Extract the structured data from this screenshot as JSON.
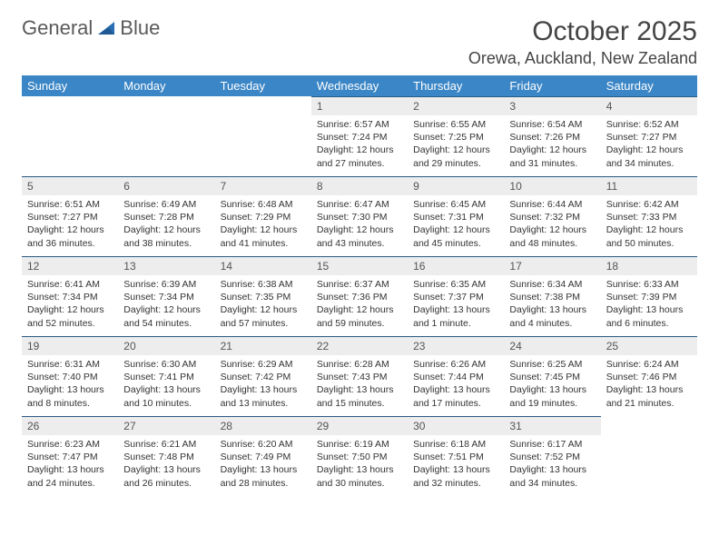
{
  "brand": {
    "part1": "General",
    "part2": "Blue"
  },
  "title": "October 2025",
  "location": "Orewa, Auckland, New Zealand",
  "colors": {
    "header_bg": "#3b86c6",
    "header_text": "#ffffff",
    "daynum_bg": "#ededed",
    "row_divider": "#2a5a85",
    "body_text": "#333333",
    "logo_accent": "#2a6fb3"
  },
  "weekdays": [
    "Sunday",
    "Monday",
    "Tuesday",
    "Wednesday",
    "Thursday",
    "Friday",
    "Saturday"
  ],
  "weeks": [
    [
      null,
      null,
      null,
      {
        "n": "1",
        "sr": "Sunrise: 6:57 AM",
        "ss": "Sunset: 7:24 PM",
        "d1": "Daylight: 12 hours",
        "d2": "and 27 minutes."
      },
      {
        "n": "2",
        "sr": "Sunrise: 6:55 AM",
        "ss": "Sunset: 7:25 PM",
        "d1": "Daylight: 12 hours",
        "d2": "and 29 minutes."
      },
      {
        "n": "3",
        "sr": "Sunrise: 6:54 AM",
        "ss": "Sunset: 7:26 PM",
        "d1": "Daylight: 12 hours",
        "d2": "and 31 minutes."
      },
      {
        "n": "4",
        "sr": "Sunrise: 6:52 AM",
        "ss": "Sunset: 7:27 PM",
        "d1": "Daylight: 12 hours",
        "d2": "and 34 minutes."
      }
    ],
    [
      {
        "n": "5",
        "sr": "Sunrise: 6:51 AM",
        "ss": "Sunset: 7:27 PM",
        "d1": "Daylight: 12 hours",
        "d2": "and 36 minutes."
      },
      {
        "n": "6",
        "sr": "Sunrise: 6:49 AM",
        "ss": "Sunset: 7:28 PM",
        "d1": "Daylight: 12 hours",
        "d2": "and 38 minutes."
      },
      {
        "n": "7",
        "sr": "Sunrise: 6:48 AM",
        "ss": "Sunset: 7:29 PM",
        "d1": "Daylight: 12 hours",
        "d2": "and 41 minutes."
      },
      {
        "n": "8",
        "sr": "Sunrise: 6:47 AM",
        "ss": "Sunset: 7:30 PM",
        "d1": "Daylight: 12 hours",
        "d2": "and 43 minutes."
      },
      {
        "n": "9",
        "sr": "Sunrise: 6:45 AM",
        "ss": "Sunset: 7:31 PM",
        "d1": "Daylight: 12 hours",
        "d2": "and 45 minutes."
      },
      {
        "n": "10",
        "sr": "Sunrise: 6:44 AM",
        "ss": "Sunset: 7:32 PM",
        "d1": "Daylight: 12 hours",
        "d2": "and 48 minutes."
      },
      {
        "n": "11",
        "sr": "Sunrise: 6:42 AM",
        "ss": "Sunset: 7:33 PM",
        "d1": "Daylight: 12 hours",
        "d2": "and 50 minutes."
      }
    ],
    [
      {
        "n": "12",
        "sr": "Sunrise: 6:41 AM",
        "ss": "Sunset: 7:34 PM",
        "d1": "Daylight: 12 hours",
        "d2": "and 52 minutes."
      },
      {
        "n": "13",
        "sr": "Sunrise: 6:39 AM",
        "ss": "Sunset: 7:34 PM",
        "d1": "Daylight: 12 hours",
        "d2": "and 54 minutes."
      },
      {
        "n": "14",
        "sr": "Sunrise: 6:38 AM",
        "ss": "Sunset: 7:35 PM",
        "d1": "Daylight: 12 hours",
        "d2": "and 57 minutes."
      },
      {
        "n": "15",
        "sr": "Sunrise: 6:37 AM",
        "ss": "Sunset: 7:36 PM",
        "d1": "Daylight: 12 hours",
        "d2": "and 59 minutes."
      },
      {
        "n": "16",
        "sr": "Sunrise: 6:35 AM",
        "ss": "Sunset: 7:37 PM",
        "d1": "Daylight: 13 hours",
        "d2": "and 1 minute."
      },
      {
        "n": "17",
        "sr": "Sunrise: 6:34 AM",
        "ss": "Sunset: 7:38 PM",
        "d1": "Daylight: 13 hours",
        "d2": "and 4 minutes."
      },
      {
        "n": "18",
        "sr": "Sunrise: 6:33 AM",
        "ss": "Sunset: 7:39 PM",
        "d1": "Daylight: 13 hours",
        "d2": "and 6 minutes."
      }
    ],
    [
      {
        "n": "19",
        "sr": "Sunrise: 6:31 AM",
        "ss": "Sunset: 7:40 PM",
        "d1": "Daylight: 13 hours",
        "d2": "and 8 minutes."
      },
      {
        "n": "20",
        "sr": "Sunrise: 6:30 AM",
        "ss": "Sunset: 7:41 PM",
        "d1": "Daylight: 13 hours",
        "d2": "and 10 minutes."
      },
      {
        "n": "21",
        "sr": "Sunrise: 6:29 AM",
        "ss": "Sunset: 7:42 PM",
        "d1": "Daylight: 13 hours",
        "d2": "and 13 minutes."
      },
      {
        "n": "22",
        "sr": "Sunrise: 6:28 AM",
        "ss": "Sunset: 7:43 PM",
        "d1": "Daylight: 13 hours",
        "d2": "and 15 minutes."
      },
      {
        "n": "23",
        "sr": "Sunrise: 6:26 AM",
        "ss": "Sunset: 7:44 PM",
        "d1": "Daylight: 13 hours",
        "d2": "and 17 minutes."
      },
      {
        "n": "24",
        "sr": "Sunrise: 6:25 AM",
        "ss": "Sunset: 7:45 PM",
        "d1": "Daylight: 13 hours",
        "d2": "and 19 minutes."
      },
      {
        "n": "25",
        "sr": "Sunrise: 6:24 AM",
        "ss": "Sunset: 7:46 PM",
        "d1": "Daylight: 13 hours",
        "d2": "and 21 minutes."
      }
    ],
    [
      {
        "n": "26",
        "sr": "Sunrise: 6:23 AM",
        "ss": "Sunset: 7:47 PM",
        "d1": "Daylight: 13 hours",
        "d2": "and 24 minutes."
      },
      {
        "n": "27",
        "sr": "Sunrise: 6:21 AM",
        "ss": "Sunset: 7:48 PM",
        "d1": "Daylight: 13 hours",
        "d2": "and 26 minutes."
      },
      {
        "n": "28",
        "sr": "Sunrise: 6:20 AM",
        "ss": "Sunset: 7:49 PM",
        "d1": "Daylight: 13 hours",
        "d2": "and 28 minutes."
      },
      {
        "n": "29",
        "sr": "Sunrise: 6:19 AM",
        "ss": "Sunset: 7:50 PM",
        "d1": "Daylight: 13 hours",
        "d2": "and 30 minutes."
      },
      {
        "n": "30",
        "sr": "Sunrise: 6:18 AM",
        "ss": "Sunset: 7:51 PM",
        "d1": "Daylight: 13 hours",
        "d2": "and 32 minutes."
      },
      {
        "n": "31",
        "sr": "Sunrise: 6:17 AM",
        "ss": "Sunset: 7:52 PM",
        "d1": "Daylight: 13 hours",
        "d2": "and 34 minutes."
      },
      null
    ]
  ]
}
